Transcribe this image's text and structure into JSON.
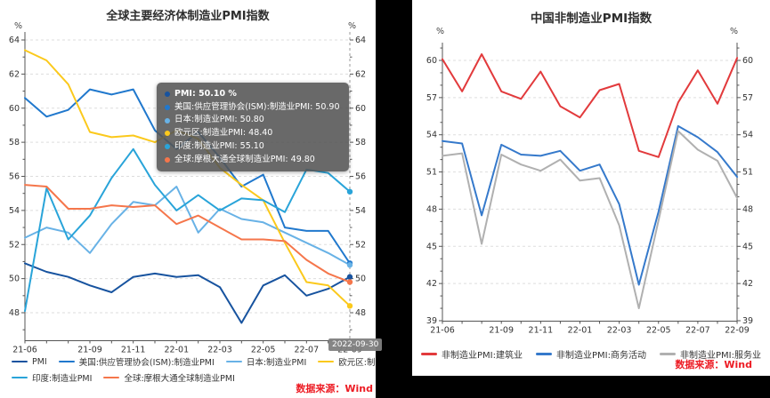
{
  "left_chart": {
    "title": "全球主要经济体制造业PMI指数",
    "axis_unit": "%",
    "source": "数据来源：Wind",
    "tooltip": {
      "date_label": "2022-09-30",
      "items": [
        {
          "name": "PMI",
          "value": "50.10",
          "suffix": "%",
          "color": "#17539f",
          "bold": true
        },
        {
          "name": "美国:供应管理协会(ISM):制造业PMI",
          "value": "50.90",
          "suffix": "",
          "color": "#2078cd",
          "bold": false
        },
        {
          "name": "日本:制造业PMI",
          "value": "50.80",
          "suffix": "",
          "color": "#68b2e6",
          "bold": false
        },
        {
          "name": "欧元区:制造业PMI",
          "value": "48.40",
          "suffix": "",
          "color": "#fbc91c",
          "bold": false
        },
        {
          "name": "印度:制造业PMI",
          "value": "55.10",
          "suffix": "",
          "color": "#29a4d9",
          "bold": false
        },
        {
          "name": "全球:摩根大通全球制造业PMI",
          "value": "49.80",
          "suffix": "",
          "color": "#f5764b",
          "bold": false
        }
      ]
    }
  },
  "right_chart": {
    "title": "中国非制造业PMI指数",
    "axis_unit": "%",
    "source": "数据来源：Wind"
  },
  "colors": {
    "source_text": "#ed1c24",
    "axis": "#555555",
    "gridline": "#dddddd",
    "tick_label": "#333333",
    "tooltip_bg": "rgba(84,84,84,0.88)",
    "badge_bg": "#808080",
    "right_section_bg": "#000000"
  },
  "chart_data": [
    {
      "id": "global-manufacturing-pmi",
      "type": "line",
      "title": "全球主要经济体制造业PMI指数",
      "ylabel": "%",
      "grid": "dashed-horizontal",
      "legend_position": "bottom",
      "ylim": [
        46.4,
        64.5
      ],
      "y_ticks": [
        48,
        50,
        52,
        54,
        56,
        58,
        60,
        62,
        64
      ],
      "x": [
        "2021-06",
        "2021-07",
        "2021-08",
        "2021-09",
        "2021-10",
        "2021-11",
        "2021-12",
        "2022-01",
        "2022-02",
        "2022-03",
        "2022-04",
        "2022-05",
        "2022-06",
        "2022-07",
        "2022-08",
        "2022-09"
      ],
      "x_tick_labels": [
        {
          "i": 0,
          "label": "21-06"
        },
        {
          "i": 3,
          "label": "21-09"
        },
        {
          "i": 5,
          "label": "21-11"
        },
        {
          "i": 7,
          "label": "22-01"
        },
        {
          "i": 9,
          "label": "22-03"
        },
        {
          "i": 11,
          "label": "22-05"
        },
        {
          "i": 13,
          "label": "22-07"
        },
        {
          "i": 15,
          "label": "22-09"
        }
      ],
      "crosshair_index": 15,
      "end_dots": true,
      "series": [
        {
          "name": "PMI",
          "color": "#17539f",
          "values": [
            50.9,
            50.4,
            50.1,
            49.6,
            49.2,
            50.1,
            50.3,
            50.1,
            50.2,
            49.5,
            47.4,
            49.6,
            50.2,
            49.0,
            49.4,
            50.1
          ]
        },
        {
          "name": "美国:供应管理协会(ISM):制造业PMI",
          "color": "#2078cd",
          "values": [
            60.6,
            59.5,
            59.9,
            61.1,
            60.8,
            61.1,
            58.7,
            57.6,
            58.6,
            57.1,
            55.4,
            56.1,
            53.0,
            52.8,
            52.8,
            50.9
          ]
        },
        {
          "name": "日本:制造业PMI",
          "color": "#68b2e6",
          "values": [
            52.4,
            53.0,
            52.7,
            51.5,
            53.2,
            54.5,
            54.3,
            55.4,
            52.7,
            54.1,
            53.5,
            53.3,
            52.7,
            52.1,
            51.5,
            50.8
          ]
        },
        {
          "name": "欧元区:制造业PMI",
          "color": "#fbc91c",
          "values": [
            63.4,
            62.8,
            61.4,
            58.6,
            58.3,
            58.4,
            58.0,
            58.7,
            58.2,
            56.5,
            55.5,
            54.6,
            52.1,
            49.8,
            49.6,
            48.4
          ]
        },
        {
          "name": "印度:制造业PMI",
          "color": "#29a4d9",
          "values": [
            48.1,
            55.3,
            52.3,
            53.7,
            55.9,
            57.6,
            55.5,
            54.0,
            54.9,
            54.0,
            54.7,
            54.6,
            53.9,
            56.4,
            56.2,
            55.1
          ]
        },
        {
          "name": "全球:摩根大通全球制造业PMI",
          "color": "#f5764b",
          "values": [
            55.5,
            55.4,
            54.1,
            54.1,
            54.3,
            54.2,
            54.3,
            53.2,
            53.7,
            53.0,
            52.3,
            52.3,
            52.2,
            51.1,
            50.3,
            49.8
          ]
        }
      ],
      "legend_rows": [
        [
          0,
          1,
          2,
          3
        ],
        [
          4,
          5
        ]
      ]
    },
    {
      "id": "china-nonmanufacturing-pmi",
      "type": "line",
      "title": "中国非制造业PMI指数",
      "ylabel": "%",
      "grid": "dashed-horizontal",
      "legend_position": "bottom",
      "ylim": [
        38.9,
        61.4
      ],
      "y_ticks": [
        39,
        42,
        45,
        48,
        51,
        54,
        57,
        60
      ],
      "x": [
        "2021-06",
        "2021-07",
        "2021-08",
        "2021-09",
        "2021-10",
        "2021-11",
        "2021-12",
        "2022-01",
        "2022-02",
        "2022-03",
        "2022-04",
        "2022-05",
        "2022-06",
        "2022-07",
        "2022-08",
        "2022-09"
      ],
      "x_tick_labels": [
        {
          "i": 0,
          "label": "21-06"
        },
        {
          "i": 3,
          "label": "21-09"
        },
        {
          "i": 5,
          "label": "21-11"
        },
        {
          "i": 7,
          "label": "22-01"
        },
        {
          "i": 9,
          "label": "22-03"
        },
        {
          "i": 11,
          "label": "22-05"
        },
        {
          "i": 13,
          "label": "22-07"
        },
        {
          "i": 15,
          "label": "22-09"
        }
      ],
      "crosshair_index": null,
      "end_dots": false,
      "series": [
        {
          "name": "非制造业PMI:建筑业",
          "color": "#e23a3c",
          "values": [
            60.1,
            57.5,
            60.5,
            57.5,
            56.9,
            59.1,
            56.3,
            55.4,
            57.6,
            58.1,
            52.7,
            52.2,
            56.6,
            59.2,
            56.5,
            60.2
          ]
        },
        {
          "name": "非制造业PMI:商务活动",
          "color": "#3579cb",
          "values": [
            53.5,
            53.3,
            47.5,
            53.2,
            52.4,
            52.3,
            52.7,
            51.1,
            51.6,
            48.4,
            41.9,
            47.8,
            54.7,
            53.8,
            52.6,
            50.6
          ]
        },
        {
          "name": "非制造业PMI:服务业",
          "color": "#b0b0b0",
          "values": [
            52.3,
            52.5,
            45.2,
            52.4,
            51.6,
            51.1,
            52.0,
            50.3,
            50.5,
            46.7,
            40.0,
            47.1,
            54.3,
            52.8,
            51.9,
            48.9
          ]
        }
      ],
      "legend_rows": [
        [
          0,
          1,
          2
        ]
      ]
    }
  ]
}
